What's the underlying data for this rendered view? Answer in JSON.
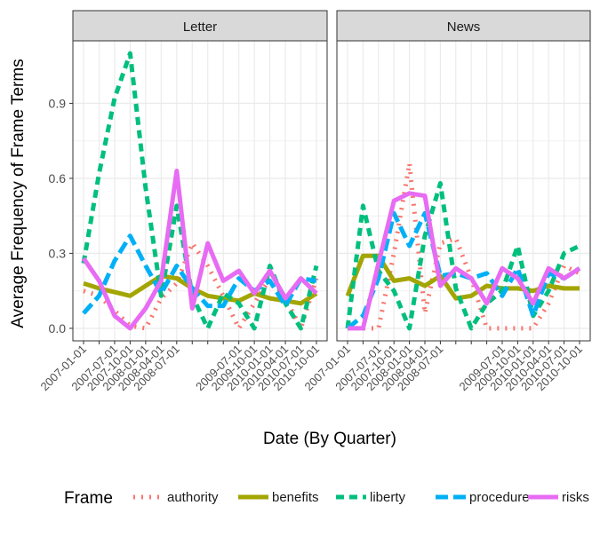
{
  "chart_data": {
    "type": "line",
    "xlabel": "Date (By Quarter)",
    "ylabel": "Average Frequency of Frame Terms",
    "ylim": [
      -0.05,
      1.15
    ],
    "y_ticks": [
      0.0,
      0.3,
      0.6,
      0.9
    ],
    "y_tick_labels": [
      "0.0",
      "0.3",
      "0.6",
      "0.9"
    ],
    "x": [
      "2007-01-01",
      "2007-04-01",
      "2007-07-01",
      "2007-10-01",
      "2008-01-01",
      "2008-04-01",
      "2008-07-01",
      "2008-10-01",
      "2009-01-01",
      "2009-04-01",
      "2009-07-01",
      "2009-10-01",
      "2010-01-01",
      "2010-04-01",
      "2010-07-01",
      "2010-10-01"
    ],
    "x_tick_labels": [
      "2007-01-01",
      "2007-07-01",
      "2007-10-01",
      "2008-01-01",
      "2008-04-01",
      "2008-07-01",
      "2009-07-01",
      "2009-10-01",
      "2010-01-01",
      "2010-04-01",
      "2010-07-01",
      "2010-10-01"
    ],
    "grid": true,
    "legend": {
      "title": "Frame",
      "placement": "bottom",
      "entries": [
        "authority",
        "benefits",
        "liberty",
        "procedure",
        "risks"
      ]
    },
    "series_styles": {
      "authority": {
        "color": "#F8766D",
        "dash": "dotted"
      },
      "benefits": {
        "color": "#A3A500",
        "dash": "solid"
      },
      "liberty": {
        "color": "#00BF7D",
        "dash": "dashed"
      },
      "procedure": {
        "color": "#00B0F6",
        "dash": "longdash"
      },
      "risks": {
        "color": "#E76BF3",
        "dash": "solid"
      }
    },
    "panels": [
      {
        "strip": "Letter",
        "series": [
          {
            "name": "authority",
            "values": [
              0.15,
              0.13,
              0.07,
              0.01,
              0.0,
              0.12,
              0.18,
              0.34,
              0.25,
              0.13,
              0.0,
              0.1,
              0.2,
              0.12,
              0.0,
              0.2
            ]
          },
          {
            "name": "benefits",
            "values": [
              0.18,
              0.16,
              0.145,
              0.13,
              0.17,
              0.21,
              0.2,
              0.16,
              0.13,
              0.12,
              0.11,
              0.14,
              0.12,
              0.11,
              0.1,
              0.14
            ]
          },
          {
            "name": "liberty",
            "values": [
              0.26,
              0.62,
              0.92,
              1.1,
              0.56,
              0.13,
              0.49,
              0.13,
              0.0,
              0.14,
              0.1,
              0.0,
              0.25,
              0.1,
              0.0,
              0.25
            ]
          },
          {
            "name": "procedure",
            "values": [
              0.06,
              0.13,
              0.27,
              0.37,
              0.25,
              0.14,
              0.25,
              0.16,
              0.09,
              0.09,
              0.2,
              0.15,
              0.19,
              0.09,
              0.2,
              0.19
            ]
          },
          {
            "name": "risks",
            "values": [
              0.28,
              0.19,
              0.05,
              0.0,
              0.08,
              0.19,
              0.63,
              0.08,
              0.34,
              0.19,
              0.23,
              0.14,
              0.23,
              0.12,
              0.2,
              0.14
            ]
          }
        ]
      },
      {
        "strip": "News",
        "series": [
          {
            "name": "authority",
            "values": [
              0.0,
              0.0,
              0.0,
              0.3,
              0.66,
              0.06,
              0.34,
              0.36,
              0.2,
              0.0,
              0.0,
              0.0,
              0.0,
              0.1,
              0.25,
              0.22
            ]
          },
          {
            "name": "benefits",
            "values": [
              0.13,
              0.29,
              0.29,
              0.19,
              0.2,
              0.17,
              0.21,
              0.12,
              0.13,
              0.17,
              0.16,
              0.16,
              0.15,
              0.17,
              0.16,
              0.16
            ]
          },
          {
            "name": "liberty",
            "values": [
              0.0,
              0.49,
              0.23,
              0.15,
              0.0,
              0.37,
              0.58,
              0.16,
              0.0,
              0.1,
              0.15,
              0.33,
              0.05,
              0.15,
              0.3,
              0.33
            ]
          },
          {
            "name": "procedure",
            "values": [
              0.0,
              0.05,
              0.2,
              0.46,
              0.33,
              0.46,
              0.21,
              0.22,
              0.2,
              0.22,
              0.13,
              0.24,
              0.05,
              0.22,
              0.2,
              0.24
            ]
          },
          {
            "name": "risks",
            "values": [
              0.0,
              0.0,
              0.26,
              0.51,
              0.54,
              0.53,
              0.17,
              0.24,
              0.2,
              0.1,
              0.24,
              0.2,
              0.1,
              0.24,
              0.2,
              0.24
            ]
          }
        ]
      }
    ]
  }
}
